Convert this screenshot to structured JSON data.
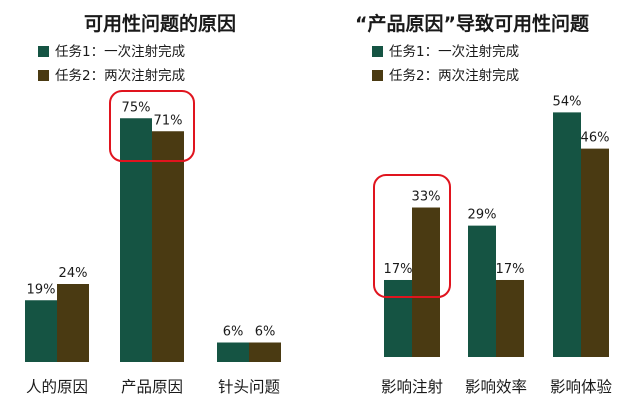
{
  "colors": {
    "series1": "#155443",
    "series2": "#4a3a12",
    "highlight": "#e0141e"
  },
  "chart_data": [
    {
      "type": "bar",
      "title": "可用性问题的原因",
      "categories": [
        "人的原因",
        "产品原因",
        "针头问题"
      ],
      "series": [
        {
          "name": "任务1：一次注射完成",
          "values": [
            19,
            75,
            6
          ]
        },
        {
          "name": "任务2：两次注射完成",
          "values": [
            24,
            71,
            6
          ]
        }
      ],
      "data_labels": [
        [
          "19%",
          "75%",
          "6%"
        ],
        [
          "24%",
          "71%",
          "6%"
        ]
      ],
      "legend_position": "top-left",
      "grid": false,
      "highlighted_category": "产品原因"
    },
    {
      "type": "bar",
      "title": "“产品原因”导致可用性问题",
      "categories": [
        "影响注射",
        "影响效率",
        "影响体验"
      ],
      "series": [
        {
          "name": "任务1：一次注射完成",
          "values": [
            17,
            29,
            54
          ]
        },
        {
          "name": "任务2：两次注射完成",
          "values": [
            33,
            17,
            46
          ]
        }
      ],
      "data_labels": [
        [
          "17%",
          "29%",
          "54%"
        ],
        [
          "33%",
          "17%",
          "46%"
        ]
      ],
      "legend_position": "top-left",
      "grid": false,
      "highlighted_category": "影响注射"
    }
  ]
}
